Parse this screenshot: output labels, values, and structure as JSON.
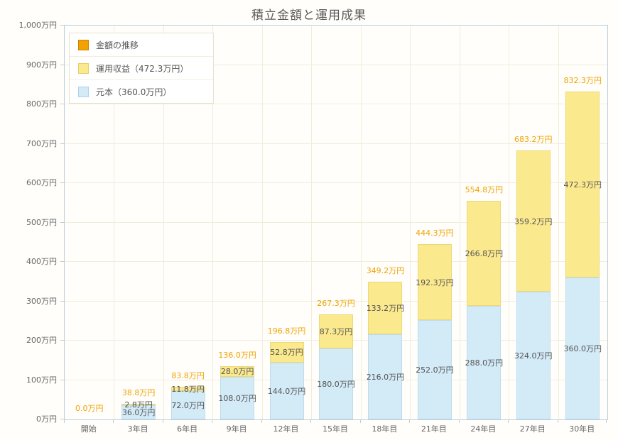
{
  "page": {
    "title": "積立金額と運用成果"
  },
  "legend": {
    "items": [
      {
        "label": "金額の推移",
        "fill": "#f2a202",
        "border": "#cc8400"
      },
      {
        "label": "運用収益（472.3万円）",
        "fill": "#fbe98d",
        "border": "#e5cf6b"
      },
      {
        "label": "元本（360.0万円）",
        "fill": "#d3eaf7",
        "border": "#aed3e8"
      }
    ]
  },
  "chart_data": {
    "type": "bar",
    "stacked": true,
    "title": "積立金額と運用成果",
    "categories": [
      "開始",
      "3年目",
      "6年目",
      "9年目",
      "12年目",
      "15年目",
      "18年目",
      "21年目",
      "24年目",
      "27年目",
      "30年目"
    ],
    "series": [
      {
        "name": "元本",
        "fill": "#d3eaf7",
        "border": "#bedcee",
        "values": [
          0,
          36.0,
          72.0,
          108.0,
          144.0,
          180.0,
          216.0,
          252.0,
          288.0,
          324.0,
          360.0
        ],
        "labels": [
          "",
          "36.0万円",
          "72.0万円",
          "108.0万円",
          "144.0万円",
          "180.0万円",
          "216.0万円",
          "252.0万円",
          "288.0万円",
          "324.0万円",
          "360.0万円"
        ]
      },
      {
        "name": "運用収益",
        "fill": "#fbe98d",
        "border": "#ecd879",
        "values": [
          0,
          2.8,
          11.8,
          28.0,
          52.8,
          87.3,
          133.2,
          192.3,
          266.8,
          359.2,
          472.3
        ],
        "labels": [
          "",
          "2.8万円",
          "11.8万円",
          "28.0万円",
          "52.8万円",
          "87.3万円",
          "133.2万円",
          "192.3万円",
          "266.8万円",
          "359.2万円",
          "472.3万円"
        ]
      }
    ],
    "totals": {
      "name": "金額の推移",
      "color": "#f0a202",
      "values": [
        0.0,
        38.8,
        83.8,
        136.0,
        196.8,
        267.3,
        349.2,
        444.3,
        554.8,
        683.2,
        832.3
      ],
      "labels": [
        "0.0万円",
        "38.8万円",
        "83.8万円",
        "136.0万円",
        "196.8万円",
        "267.3万円",
        "349.2万円",
        "444.3万円",
        "554.8万円",
        "683.2万円",
        "832.3万円"
      ]
    },
    "y_axis": {
      "min": 0,
      "max": 1000,
      "step": 100,
      "tick_labels": [
        "0万円",
        "100万円",
        "200万円",
        "300万円",
        "400万円",
        "500万円",
        "600万円",
        "700万円",
        "800万円",
        "900万円",
        "1,000万円"
      ]
    },
    "grid": true,
    "legend_position": "top-left"
  }
}
